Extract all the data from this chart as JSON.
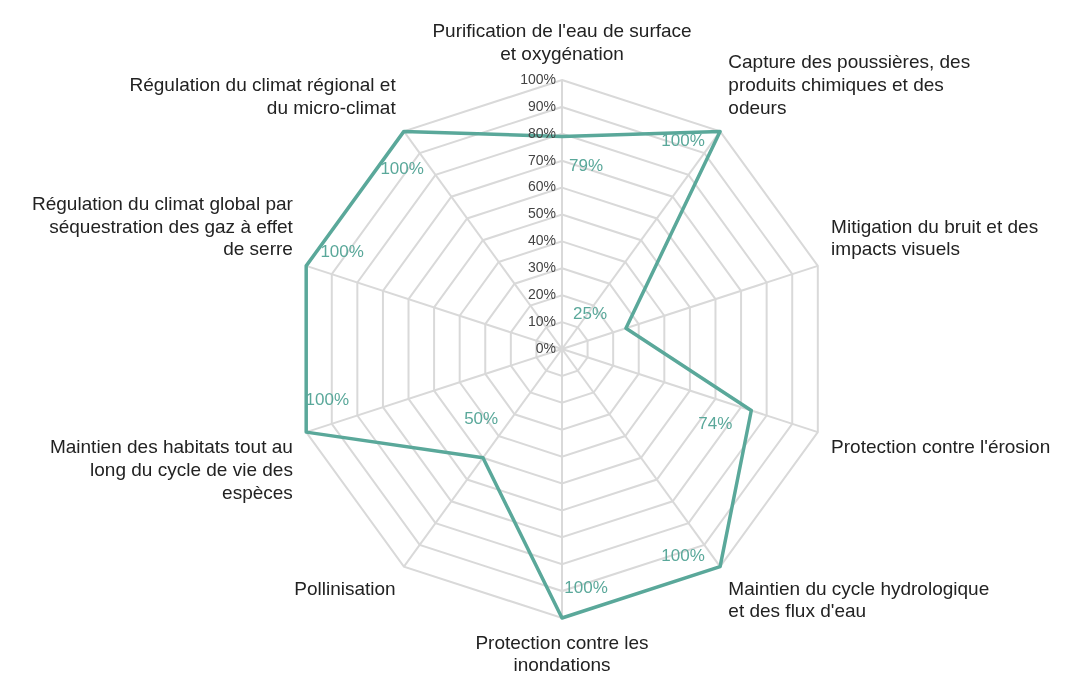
{
  "chart_data": {
    "type": "radar",
    "categories": [
      "Purification de l'eau de surface et oxygénation",
      "Capture des poussières, des produits chimiques et des odeurs",
      "Mitigation du bruit et des impacts visuels",
      "Protection contre l'érosion",
      "Maintien du cycle hydrologique et des flux d'eau",
      "Protection contre les inondations",
      "Pollinisation",
      "Maintien des habitats tout au long du cycle de vie des espèces",
      "Régulation du climat global par séquestration des gaz à effet de serre",
      "Régulation du climat régional et du micro-climat"
    ],
    "series": [
      {
        "color": "#5aa89a",
        "values": [
          79,
          100,
          25,
          74,
          100,
          100,
          50,
          100,
          100,
          100
        ],
        "value_labels": [
          "79%",
          "100%",
          "25%",
          "74%",
          "100%",
          "100%",
          "50%",
          "100%",
          "100%",
          "100%"
        ]
      }
    ],
    "ylim": [
      0,
      100
    ],
    "yticks": [
      {
        "value": 0,
        "label": "0%"
      },
      {
        "value": 10,
        "label": "10%"
      },
      {
        "value": 20,
        "label": "20%"
      },
      {
        "value": 30,
        "label": "30%"
      },
      {
        "value": 40,
        "label": "40%"
      },
      {
        "value": 50,
        "label": "50%"
      },
      {
        "value": 60,
        "label": "60%"
      },
      {
        "value": 70,
        "label": "70%"
      },
      {
        "value": 80,
        "label": "80%"
      },
      {
        "value": 90,
        "label": "90%"
      },
      {
        "value": 100,
        "label": "100%"
      }
    ],
    "grid": true,
    "legend": false,
    "marker": "none",
    "line_style": "solid"
  }
}
